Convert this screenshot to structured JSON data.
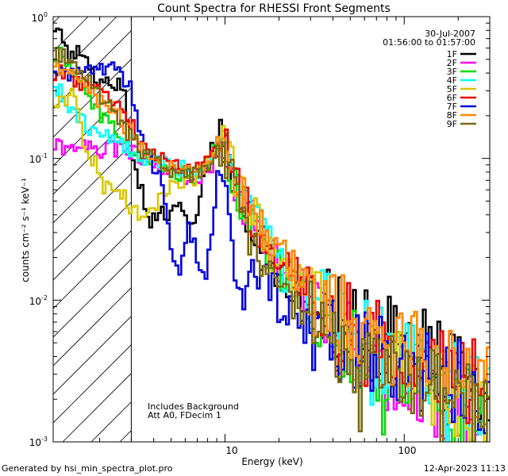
{
  "chart_data": {
    "type": "line",
    "title": "Count Spectra for RHESSI Front Segments",
    "xlabel": "Energy (keV)",
    "ylabel": "counts cm⁻² s⁻¹ keV⁻¹",
    "xscale": "log",
    "yscale": "log",
    "xlim": [
      1.1,
      300
    ],
    "ylim": [
      0.001,
      1
    ],
    "x_tick_labels": [
      {
        "value": 10,
        "label": "10"
      },
      {
        "value": 100,
        "label": "100"
      }
    ],
    "y_tick_labels": [
      {
        "value": 1,
        "base": "10",
        "exp": "0"
      },
      {
        "value": 0.1,
        "base": "10",
        "exp": "-1"
      },
      {
        "value": 0.01,
        "base": "10",
        "exp": "-2"
      },
      {
        "value": 0.001,
        "base": "10",
        "exp": "-3"
      }
    ],
    "date": "30-Jul-2007",
    "time_range": "01:56:00 to 01:57:00",
    "annotation_lines": [
      "Includes Background",
      "Att A0, FDecim 1"
    ],
    "hatched_region_xmax": 3.0,
    "legend_position": "top-right",
    "series": [
      {
        "name": "1F",
        "color": "#000000",
        "seed": 11,
        "points": [
          [
            1.2,
            0.75
          ],
          [
            1.35,
            0.52
          ],
          [
            1.5,
            0.6
          ],
          [
            1.7,
            0.5
          ],
          [
            1.9,
            0.32
          ],
          [
            2.2,
            0.33
          ],
          [
            2.5,
            0.35
          ],
          [
            2.8,
            0.27
          ],
          [
            3.0,
            0.1
          ],
          [
            3.3,
            0.07
          ],
          [
            3.8,
            0.035
          ],
          [
            4.5,
            0.04
          ],
          [
            5.5,
            0.045
          ],
          [
            6.5,
            0.035
          ],
          [
            7.2,
            0.05
          ],
          [
            8.2,
            0.11
          ],
          [
            9.0,
            0.13
          ],
          [
            9.6,
            0.19
          ],
          [
            10.3,
            0.14
          ],
          [
            11,
            0.08
          ],
          [
            12.5,
            0.05
          ],
          [
            15,
            0.03
          ],
          [
            20,
            0.016
          ],
          [
            30,
            0.01
          ],
          [
            50,
            0.0065
          ],
          [
            80,
            0.0058
          ],
          [
            120,
            0.0045
          ],
          [
            180,
            0.0035
          ],
          [
            240,
            0.003
          ],
          [
            290,
            0.0025
          ]
        ]
      },
      {
        "name": "2F",
        "color": "#ff00ff",
        "seed": 22,
        "points": [
          [
            1.2,
            0.12
          ],
          [
            1.5,
            0.12
          ],
          [
            2.0,
            0.115
          ],
          [
            2.5,
            0.115
          ],
          [
            3.0,
            0.11
          ],
          [
            3.5,
            0.1
          ],
          [
            4.5,
            0.085
          ],
          [
            5.5,
            0.075
          ],
          [
            7,
            0.07
          ],
          [
            8.5,
            0.09
          ],
          [
            9.6,
            0.13
          ],
          [
            10.5,
            0.1
          ],
          [
            12,
            0.055
          ],
          [
            15,
            0.033
          ],
          [
            20,
            0.017
          ],
          [
            30,
            0.01
          ],
          [
            50,
            0.005
          ],
          [
            80,
            0.0032
          ],
          [
            120,
            0.0022
          ],
          [
            180,
            0.0018
          ],
          [
            240,
            0.0014
          ],
          [
            290,
            0.0012
          ]
        ]
      },
      {
        "name": "3F",
        "color": "#00dd00",
        "seed": 33,
        "points": [
          [
            1.2,
            0.55
          ],
          [
            1.4,
            0.4
          ],
          [
            1.7,
            0.3
          ],
          [
            2.0,
            0.2
          ],
          [
            2.5,
            0.16
          ],
          [
            3.0,
            0.12
          ],
          [
            3.5,
            0.1
          ],
          [
            4.5,
            0.085
          ],
          [
            5.5,
            0.08
          ],
          [
            7,
            0.075
          ],
          [
            8.5,
            0.1
          ],
          [
            9.6,
            0.14
          ],
          [
            10.5,
            0.1
          ],
          [
            12,
            0.055
          ],
          [
            15,
            0.033
          ],
          [
            20,
            0.016
          ],
          [
            30,
            0.009
          ],
          [
            50,
            0.0045
          ],
          [
            80,
            0.0032
          ],
          [
            120,
            0.0028
          ],
          [
            180,
            0.0024
          ],
          [
            240,
            0.002
          ],
          [
            290,
            0.0018
          ]
        ]
      },
      {
        "name": "4F",
        "color": "#00ffff",
        "seed": 44,
        "points": [
          [
            1.2,
            0.3
          ],
          [
            1.4,
            0.22
          ],
          [
            1.7,
            0.17
          ],
          [
            2.0,
            0.15
          ],
          [
            2.5,
            0.14
          ],
          [
            3.0,
            0.115
          ],
          [
            3.5,
            0.1
          ],
          [
            4.5,
            0.09
          ],
          [
            5.5,
            0.085
          ],
          [
            7,
            0.08
          ],
          [
            8.5,
            0.11
          ],
          [
            9.6,
            0.15
          ],
          [
            10.5,
            0.11
          ],
          [
            12,
            0.06
          ],
          [
            15,
            0.036
          ],
          [
            20,
            0.018
          ],
          [
            30,
            0.011
          ],
          [
            50,
            0.006
          ],
          [
            80,
            0.0042
          ],
          [
            120,
            0.0033
          ],
          [
            180,
            0.0028
          ],
          [
            240,
            0.0023
          ],
          [
            290,
            0.002
          ]
        ]
      },
      {
        "name": "5F",
        "color": "#d8c800",
        "seed": 55,
        "points": [
          [
            1.2,
            0.24
          ],
          [
            1.4,
            0.3
          ],
          [
            1.55,
            0.17
          ],
          [
            1.7,
            0.095
          ],
          [
            1.9,
            0.1
          ],
          [
            2.1,
            0.065
          ],
          [
            2.4,
            0.062
          ],
          [
            2.7,
            0.058
          ],
          [
            3.0,
            0.045
          ],
          [
            3.5,
            0.038
          ],
          [
            4.2,
            0.05
          ],
          [
            5,
            0.065
          ],
          [
            6,
            0.07
          ],
          [
            7,
            0.075
          ],
          [
            8.5,
            0.1
          ],
          [
            9.6,
            0.14
          ],
          [
            10.5,
            0.1
          ],
          [
            12,
            0.06
          ],
          [
            15,
            0.035
          ],
          [
            20,
            0.018
          ],
          [
            30,
            0.01
          ],
          [
            50,
            0.0055
          ],
          [
            80,
            0.004
          ],
          [
            120,
            0.0028
          ],
          [
            180,
            0.0022
          ],
          [
            240,
            0.0018
          ],
          [
            290,
            0.0016
          ]
        ]
      },
      {
        "name": "6F",
        "color": "#ee0000",
        "seed": 66,
        "points": [
          [
            1.2,
            0.4
          ],
          [
            1.4,
            0.36
          ],
          [
            1.7,
            0.32
          ],
          [
            2.0,
            0.3
          ],
          [
            2.5,
            0.25
          ],
          [
            3.0,
            0.18
          ],
          [
            3.5,
            0.12
          ],
          [
            4.5,
            0.1
          ],
          [
            5.5,
            0.09
          ],
          [
            7,
            0.085
          ],
          [
            8.5,
            0.1
          ],
          [
            9.6,
            0.14
          ],
          [
            10.5,
            0.1
          ],
          [
            12,
            0.055
          ],
          [
            15,
            0.034
          ],
          [
            20,
            0.02
          ],
          [
            30,
            0.012
          ],
          [
            50,
            0.0065
          ],
          [
            80,
            0.0048
          ],
          [
            120,
            0.004
          ],
          [
            180,
            0.0032
          ],
          [
            240,
            0.0027
          ],
          [
            290,
            0.0024
          ]
        ]
      },
      {
        "name": "7F",
        "color": "#0000dd",
        "seed": 77,
        "points": [
          [
            1.2,
            0.38
          ],
          [
            1.5,
            0.42
          ],
          [
            2.0,
            0.43
          ],
          [
            2.5,
            0.42
          ],
          [
            2.8,
            0.33
          ],
          [
            3.0,
            0.3
          ],
          [
            3.2,
            0.22
          ],
          [
            3.4,
            0.14
          ],
          [
            3.8,
            0.1
          ],
          [
            4.3,
            0.075
          ],
          [
            4.7,
            0.04
          ],
          [
            5.1,
            0.02
          ],
          [
            5.5,
            0.014
          ],
          [
            6.2,
            0.035
          ],
          [
            7,
            0.02
          ],
          [
            7.8,
            0.015
          ],
          [
            8.4,
            0.03
          ],
          [
            9,
            0.07
          ],
          [
            9.6,
            0.1
          ],
          [
            10.3,
            0.05
          ],
          [
            11,
            0.018
          ],
          [
            12,
            0.01
          ],
          [
            15,
            0.016
          ],
          [
            20,
            0.01
          ],
          [
            30,
            0.0065
          ],
          [
            50,
            0.0045
          ],
          [
            80,
            0.0038
          ],
          [
            120,
            0.0032
          ],
          [
            180,
            0.0028
          ],
          [
            240,
            0.0024
          ],
          [
            290,
            0.0022
          ]
        ]
      },
      {
        "name": "8F",
        "color": "#ff8800",
        "seed": 88,
        "points": [
          [
            1.2,
            0.45
          ],
          [
            1.4,
            0.4
          ],
          [
            1.7,
            0.32
          ],
          [
            2.0,
            0.25
          ],
          [
            2.5,
            0.2
          ],
          [
            3.0,
            0.15
          ],
          [
            3.5,
            0.11
          ],
          [
            4.5,
            0.095
          ],
          [
            5.5,
            0.085
          ],
          [
            7,
            0.08
          ],
          [
            8.5,
            0.1
          ],
          [
            9.6,
            0.15
          ],
          [
            10.5,
            0.11
          ],
          [
            12,
            0.06
          ],
          [
            15,
            0.036
          ],
          [
            20,
            0.02
          ],
          [
            30,
            0.012
          ],
          [
            50,
            0.0068
          ],
          [
            80,
            0.005
          ],
          [
            120,
            0.0042
          ],
          [
            180,
            0.0036
          ],
          [
            240,
            0.003
          ],
          [
            290,
            0.0027
          ]
        ]
      },
      {
        "name": "9F",
        "color": "#7a6a10",
        "seed": 99,
        "points": [
          [
            1.2,
            0.55
          ],
          [
            1.4,
            0.45
          ],
          [
            1.7,
            0.37
          ],
          [
            2.0,
            0.28
          ],
          [
            2.5,
            0.2
          ],
          [
            3.0,
            0.14
          ],
          [
            3.5,
            0.11
          ],
          [
            4.5,
            0.09
          ],
          [
            5.5,
            0.08
          ],
          [
            7,
            0.075
          ],
          [
            8.5,
            0.09
          ],
          [
            9.6,
            0.12
          ],
          [
            10.5,
            0.09
          ],
          [
            12,
            0.045
          ],
          [
            15,
            0.022
          ],
          [
            20,
            0.012
          ],
          [
            30,
            0.007
          ],
          [
            50,
            0.004
          ],
          [
            80,
            0.003
          ],
          [
            120,
            0.0025
          ],
          [
            180,
            0.0021
          ],
          [
            240,
            0.0018
          ],
          [
            290,
            0.0015
          ]
        ]
      }
    ]
  },
  "footer": {
    "left": "Generated by hsi_min_spectra_plot.pro",
    "right": "12-Apr-2023 11:13"
  }
}
